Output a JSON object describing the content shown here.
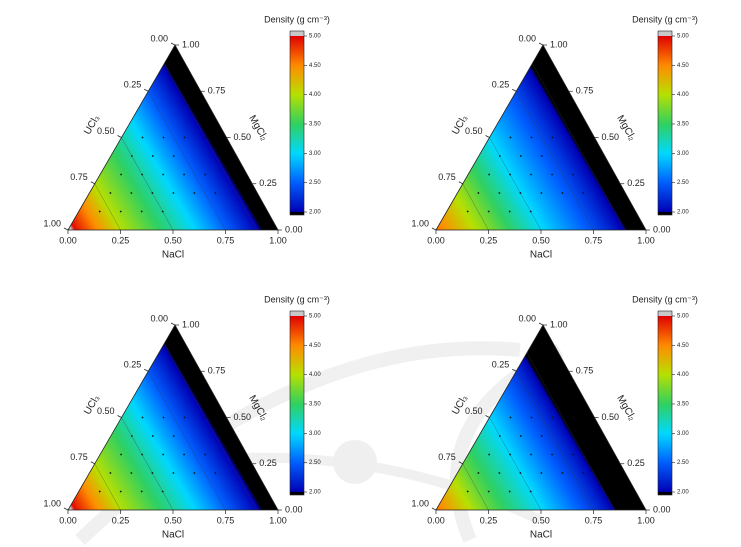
{
  "chart_data": [
    {
      "type": "ternary",
      "colorbar_title": "Density (g cm⁻³)",
      "clim": [
        2,
        5
      ],
      "colorbar_ticks": [
        {
          "value": 2,
          "label": "2.00"
        },
        {
          "value": 2.5,
          "label": "2.50"
        },
        {
          "value": 3,
          "label": "3.00"
        },
        {
          "value": 3.5,
          "label": "3.50"
        },
        {
          "value": 4,
          "label": "4.00"
        },
        {
          "value": 4.5,
          "label": "4.50"
        },
        {
          "value": 5,
          "label": "5.00"
        }
      ],
      "bottom_axis": {
        "label": "NaCl",
        "ticks": [
          {
            "value": 0,
            "label": "0.00"
          },
          {
            "value": 0.25,
            "label": "0.25"
          },
          {
            "value": 0.5,
            "label": "0.50"
          },
          {
            "value": 0.75,
            "label": "0.75"
          },
          {
            "value": 1,
            "label": "1.00"
          }
        ]
      },
      "left_axis": {
        "label": "UCl₃",
        "ticks": [
          {
            "value": 0,
            "label": "0.00"
          },
          {
            "value": 0.25,
            "label": "0.25"
          },
          {
            "value": 0.5,
            "label": "0.50"
          },
          {
            "value": 0.75,
            "label": "0.75"
          },
          {
            "value": 1,
            "label": "1.00"
          }
        ]
      },
      "right_axis": {
        "label": "MgCl₂",
        "ticks": [
          {
            "value": 0,
            "label": "0.00"
          },
          {
            "value": 0.25,
            "label": "0.25"
          },
          {
            "value": 0.5,
            "label": "0.50"
          },
          {
            "value": 0.75,
            "label": "0.75"
          },
          {
            "value": 1,
            "label": "1.00"
          }
        ]
      },
      "density": {
        "UCl3": [
          0,
          0.1,
          0.25,
          0.5,
          0.75,
          1
        ],
        "values": [
          1.8,
          2.0,
          2.5,
          3.3,
          4.0,
          5.1
        ]
      },
      "points": {
        "NaCl": [
          0.1,
          0.1,
          0.2,
          0.1,
          0.2,
          0.3,
          0.1,
          0.2,
          0.3,
          0.4,
          0.1,
          0.2,
          0.3,
          0.4,
          0.2,
          0.3,
          0.4,
          0.5,
          0.3,
          0.5,
          0.6,
          0.4
        ],
        "UCl3": [
          0.8,
          0.7,
          0.7,
          0.6,
          0.6,
          0.6,
          0.5,
          0.5,
          0.5,
          0.5,
          0.4,
          0.4,
          0.4,
          0.4,
          0.3,
          0.3,
          0.3,
          0.3,
          0.2,
          0.2,
          0.2,
          0.1
        ]
      }
    },
    {
      "type": "ternary",
      "colorbar_title": "Density (g cm⁻³)",
      "clim": [
        2,
        5
      ],
      "colorbar_ticks": [
        {
          "value": 2,
          "label": "2.00"
        },
        {
          "value": 2.5,
          "label": "2.50"
        },
        {
          "value": 3,
          "label": "3.00"
        },
        {
          "value": 3.5,
          "label": "3.50"
        },
        {
          "value": 4,
          "label": "4.00"
        },
        {
          "value": 4.5,
          "label": "4.50"
        },
        {
          "value": 5,
          "label": "5.00"
        }
      ],
      "bottom_axis": {
        "label": "NaCl",
        "ticks": [
          {
            "value": 0,
            "label": "0.00"
          },
          {
            "value": 0.25,
            "label": "0.25"
          },
          {
            "value": 0.5,
            "label": "0.50"
          },
          {
            "value": 0.75,
            "label": "0.75"
          },
          {
            "value": 1,
            "label": "1.00"
          }
        ]
      },
      "left_axis": {
        "label": "UCl₃",
        "ticks": [
          {
            "value": 0,
            "label": "0.00"
          },
          {
            "value": 0.25,
            "label": "0.25"
          },
          {
            "value": 0.5,
            "label": "0.50"
          },
          {
            "value": 0.75,
            "label": "0.75"
          },
          {
            "value": 1,
            "label": "1.00"
          }
        ]
      },
      "right_axis": {
        "label": "MgCl₂",
        "ticks": [
          {
            "value": 0,
            "label": "0.00"
          },
          {
            "value": 0.25,
            "label": "0.25"
          },
          {
            "value": 0.5,
            "label": "0.50"
          },
          {
            "value": 0.75,
            "label": "0.75"
          },
          {
            "value": 1,
            "label": "1.00"
          }
        ]
      },
      "density": {
        "UCl3": [
          0,
          0.1,
          0.25,
          0.5,
          0.75,
          1
        ],
        "values": [
          1.7,
          1.95,
          2.4,
          3.0,
          3.8,
          4.6
        ]
      },
      "points": {
        "NaCl": [
          0.1,
          0.1,
          0.2,
          0.1,
          0.2,
          0.3,
          0.1,
          0.2,
          0.3,
          0.4,
          0.1,
          0.2,
          0.3,
          0.4,
          0.2,
          0.3,
          0.4,
          0.5,
          0.3,
          0.5,
          0.6,
          0.4
        ],
        "UCl3": [
          0.8,
          0.7,
          0.7,
          0.6,
          0.6,
          0.6,
          0.5,
          0.5,
          0.5,
          0.5,
          0.4,
          0.4,
          0.4,
          0.4,
          0.3,
          0.3,
          0.3,
          0.3,
          0.2,
          0.2,
          0.2,
          0.1
        ]
      }
    },
    {
      "type": "ternary",
      "colorbar_title": "Density (g cm⁻³)",
      "clim": [
        2,
        5
      ],
      "colorbar_ticks": [
        {
          "value": 2,
          "label": "2.00"
        },
        {
          "value": 2.5,
          "label": "2.50"
        },
        {
          "value": 3,
          "label": "3.00"
        },
        {
          "value": 3.5,
          "label": "3.50"
        },
        {
          "value": 4,
          "label": "4.00"
        },
        {
          "value": 4.5,
          "label": "4.50"
        },
        {
          "value": 5,
          "label": "5.00"
        }
      ],
      "bottom_axis": {
        "label": "NaCl",
        "ticks": [
          {
            "value": 0,
            "label": "0.00"
          },
          {
            "value": 0.25,
            "label": "0.25"
          },
          {
            "value": 0.5,
            "label": "0.50"
          },
          {
            "value": 0.75,
            "label": "0.75"
          },
          {
            "value": 1,
            "label": "1.00"
          }
        ]
      },
      "left_axis": {
        "label": "UCl₃",
        "ticks": [
          {
            "value": 0,
            "label": "0.00"
          },
          {
            "value": 0.25,
            "label": "0.25"
          },
          {
            "value": 0.5,
            "label": "0.50"
          },
          {
            "value": 0.75,
            "label": "0.75"
          },
          {
            "value": 1,
            "label": "1.00"
          }
        ]
      },
      "right_axis": {
        "label": "MgCl₂",
        "ticks": [
          {
            "value": 0,
            "label": "0.00"
          },
          {
            "value": 0.25,
            "label": "0.25"
          },
          {
            "value": 0.5,
            "label": "0.50"
          },
          {
            "value": 0.75,
            "label": "0.75"
          },
          {
            "value": 1,
            "label": "1.00"
          }
        ]
      },
      "density": {
        "UCl3": [
          0,
          0.1,
          0.25,
          0.5,
          0.75,
          1
        ],
        "values": [
          1.8,
          2.0,
          2.5,
          3.3,
          4.0,
          5.1
        ]
      },
      "points": {
        "NaCl": [
          0.1,
          0.1,
          0.2,
          0.1,
          0.2,
          0.3,
          0.1,
          0.2,
          0.3,
          0.4,
          0.1,
          0.2,
          0.3,
          0.4,
          0.2,
          0.3,
          0.4,
          0.5,
          0.3,
          0.5,
          0.6,
          0.4
        ],
        "UCl3": [
          0.8,
          0.7,
          0.7,
          0.6,
          0.6,
          0.6,
          0.5,
          0.5,
          0.5,
          0.5,
          0.4,
          0.4,
          0.4,
          0.4,
          0.3,
          0.3,
          0.3,
          0.3,
          0.2,
          0.2,
          0.2,
          0.1
        ]
      }
    },
    {
      "type": "ternary",
      "colorbar_title": "Density (g cm⁻³)",
      "clim": [
        2,
        5
      ],
      "colorbar_ticks": [
        {
          "value": 2,
          "label": "2.00"
        },
        {
          "value": 2.5,
          "label": "2.50"
        },
        {
          "value": 3,
          "label": "3.00"
        },
        {
          "value": 3.5,
          "label": "3.50"
        },
        {
          "value": 4,
          "label": "4.00"
        },
        {
          "value": 4.5,
          "label": "4.50"
        },
        {
          "value": 5,
          "label": "5.00"
        }
      ],
      "bottom_axis": {
        "label": "NaCl",
        "ticks": [
          {
            "value": 0,
            "label": "0.00"
          },
          {
            "value": 0.25,
            "label": "0.25"
          },
          {
            "value": 0.5,
            "label": "0.50"
          },
          {
            "value": 0.75,
            "label": "0.75"
          },
          {
            "value": 1,
            "label": "1.00"
          }
        ]
      },
      "left_axis": {
        "label": "UCl₃",
        "ticks": [
          {
            "value": 0,
            "label": "0.00"
          },
          {
            "value": 0.25,
            "label": "0.25"
          },
          {
            "value": 0.5,
            "label": "0.50"
          },
          {
            "value": 0.75,
            "label": "0.75"
          },
          {
            "value": 1,
            "label": "1.00"
          }
        ]
      },
      "right_axis": {
        "label": "MgCl₂",
        "ticks": [
          {
            "value": 0,
            "label": "0.00"
          },
          {
            "value": 0.25,
            "label": "0.25"
          },
          {
            "value": 0.5,
            "label": "0.50"
          },
          {
            "value": 0.75,
            "label": "0.75"
          },
          {
            "value": 1,
            "label": "1.00"
          }
        ]
      },
      "density": {
        "UCl3": [
          0,
          0.15,
          0.25,
          0.5,
          0.75,
          1
        ],
        "values": [
          1.5,
          1.95,
          2.3,
          3.0,
          3.7,
          4.6
        ]
      },
      "points": {
        "NaCl": [
          0.1,
          0.1,
          0.2,
          0.1,
          0.2,
          0.3,
          0.1,
          0.2,
          0.3,
          0.4,
          0.1,
          0.2,
          0.3,
          0.4,
          0.2,
          0.3,
          0.4,
          0.5,
          0.3,
          0.5,
          0.6,
          0.4
        ],
        "UCl3": [
          0.8,
          0.7,
          0.7,
          0.6,
          0.6,
          0.6,
          0.5,
          0.5,
          0.5,
          0.5,
          0.4,
          0.4,
          0.4,
          0.4,
          0.3,
          0.3,
          0.3,
          0.3,
          0.2,
          0.2,
          0.2,
          0.1
        ]
      }
    }
  ]
}
